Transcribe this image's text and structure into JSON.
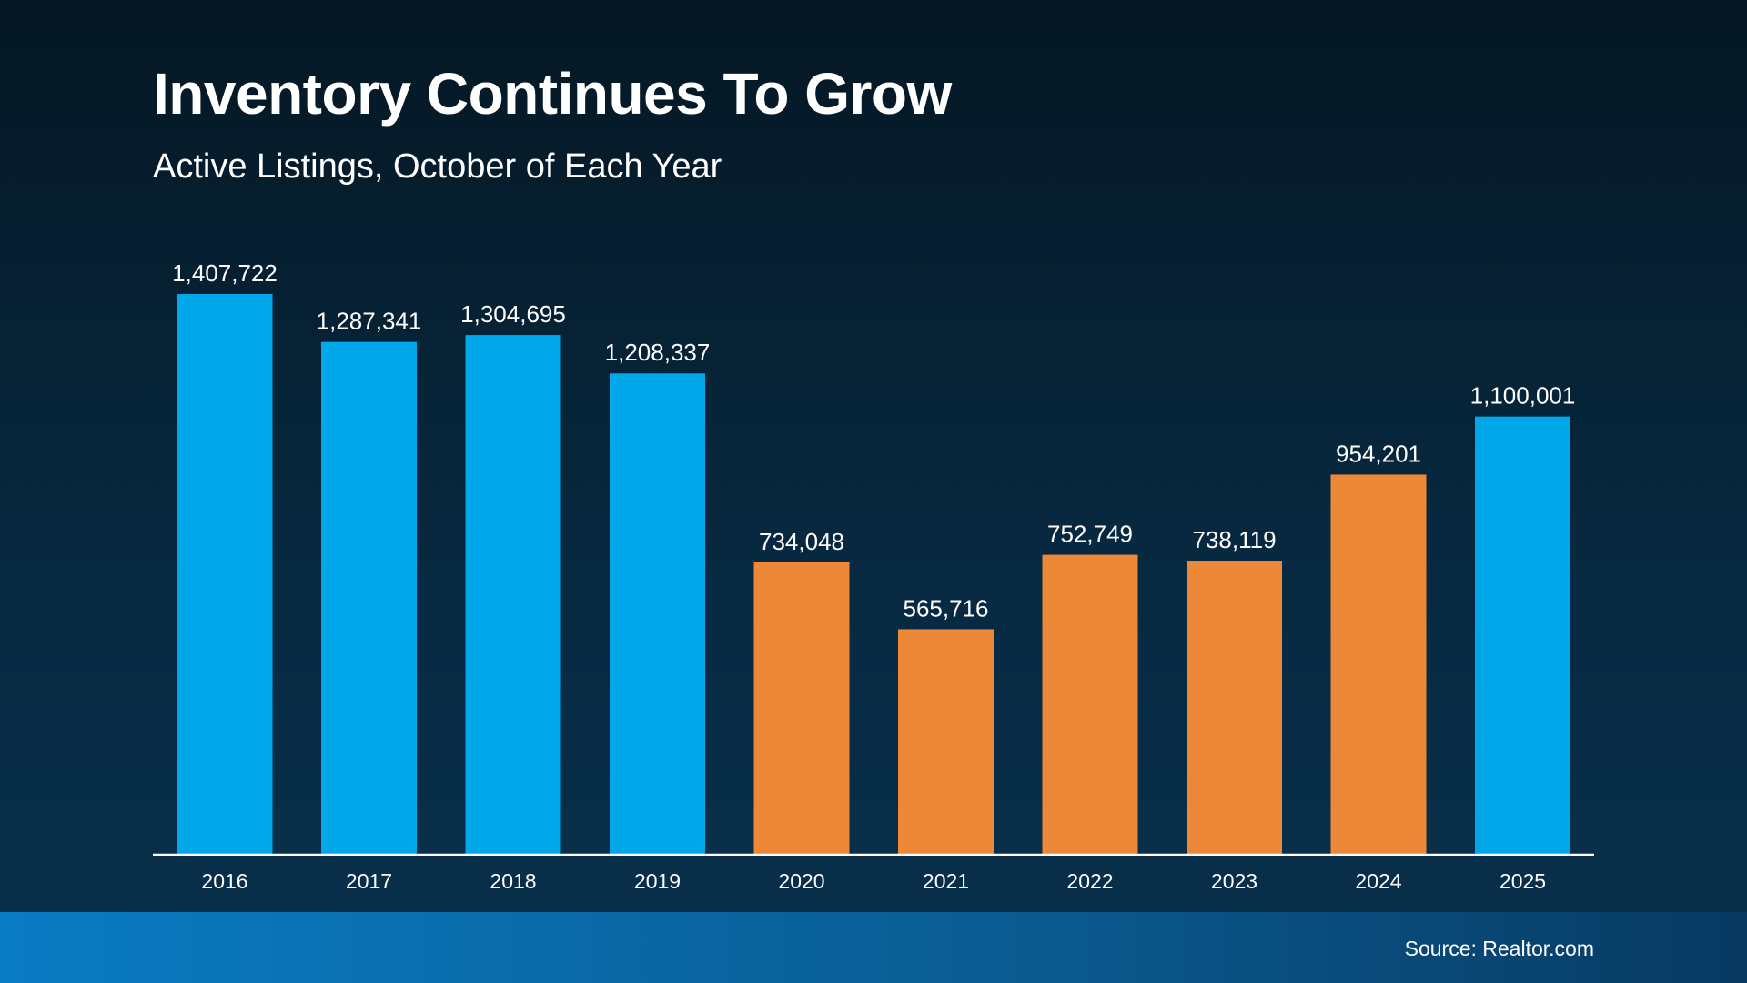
{
  "chart_data": {
    "type": "bar",
    "title": "Inventory Continues To Grow",
    "subtitle": "Active Listings, October of Each Year",
    "categories": [
      "2016",
      "2017",
      "2018",
      "2019",
      "2020",
      "2021",
      "2022",
      "2023",
      "2024",
      "2025"
    ],
    "values": [
      1407722,
      1287341,
      1304695,
      1208337,
      734048,
      565716,
      752749,
      738119,
      954201,
      1100001
    ],
    "data_labels": [
      "1,407,722",
      "1,287,341",
      "1,304,695",
      "1,208,337",
      "734,048",
      "565,716",
      "752,749",
      "738,119",
      "954,201",
      "1,100,001"
    ],
    "bar_colors": [
      "#00a8ea",
      "#00a8ea",
      "#00a8ea",
      "#00a8ea",
      "#ec8838",
      "#ec8838",
      "#ec8838",
      "#ec8838",
      "#ec8838",
      "#00a8ea"
    ],
    "xlabel": "",
    "ylabel": "",
    "ylim": [
      0,
      1407722
    ],
    "grid": false
  },
  "footer": {
    "source": "Source: Realtor.com"
  }
}
